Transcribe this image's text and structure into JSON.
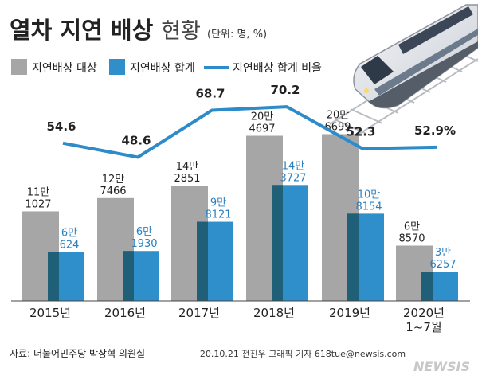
{
  "header": {
    "title_main": "열차 지연 배상",
    "title_sub": "현황",
    "unit": "(단위: 명, %)"
  },
  "legend": {
    "target_label": "지연배상 대상",
    "total_label": "지연배상 합계",
    "ratio_label": "지연배상 합계 비율"
  },
  "footer": {
    "source": "자료: 더불어민주당 박상혁 의원실",
    "credit": "20.10.21 전진우 그래픽 기자 618tue@newsis.com",
    "watermark": "NEWSIS"
  },
  "colors": {
    "target_bar": "#a6a6a6",
    "target_dark": "#808080",
    "total_bar": "#2f8fca",
    "total_overlap": "#1f5f78",
    "ratio_line": "#2e8bc9",
    "label_blue": "#2a7fc0",
    "text": "#222222"
  },
  "chart_data": {
    "type": "bar",
    "categories": [
      "2015년",
      "2016년",
      "2017년",
      "2018년",
      "2019년",
      "2020년\n1~7월"
    ],
    "series": [
      {
        "name": "지연배상 대상",
        "values": [
          111027,
          127466,
          142851,
          204697,
          206699,
          68570
        ],
        "labels_top": [
          "11만",
          "12만",
          "14만",
          "20만",
          "20만",
          "6만"
        ],
        "labels_bottom": [
          "1027",
          "7466",
          "2851",
          "4697",
          "6699",
          "8570"
        ]
      },
      {
        "name": "지연배상 합계",
        "values": [
          60624,
          61930,
          98121,
          143727,
          108154,
          36257
        ],
        "labels_top": [
          "6만",
          "6만",
          "9만",
          "14만",
          "10만",
          "3만"
        ],
        "labels_bottom": [
          "624",
          "1930",
          "8121",
          "3727",
          "8154",
          "6257"
        ]
      },
      {
        "name": "지연배상 합계 비율",
        "type": "line",
        "values": [
          54.6,
          48.6,
          68.7,
          70.2,
          52.3,
          52.9
        ],
        "labels": [
          "54.6",
          "48.6",
          "68.7",
          "70.2",
          "52.3",
          "52.9%"
        ]
      }
    ],
    "ylim": [
      0,
      220000
    ],
    "ratio_ylim": [
      45,
      75
    ],
    "grid": false,
    "legend_position": "top-left"
  },
  "decoration": {
    "train_icon": "train-icon"
  }
}
